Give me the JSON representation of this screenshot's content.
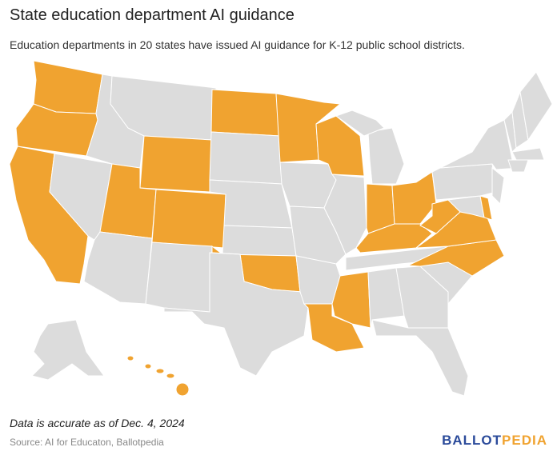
{
  "header": {
    "title": "State education department AI guidance",
    "subtitle": "Education departments in 20 states have issued AI guidance for K-12 public school districts."
  },
  "footer": {
    "note": "Data is accurate as of Dec. 4, 2024",
    "source": "Source: AI for Educaton, Ballotpedia",
    "logo": [
      "BALLOT",
      "PEDIA"
    ]
  }
}
